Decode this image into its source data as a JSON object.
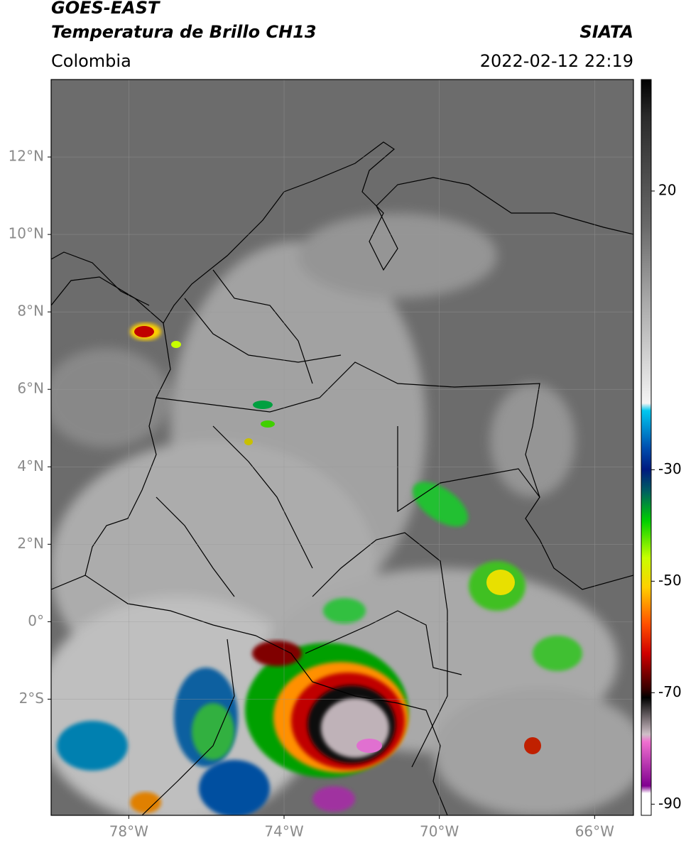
{
  "header": {
    "title": "GOES-EAST",
    "subtitle": "Temperatura de Brillo CH13",
    "source": "SIATA",
    "region": "Colombia",
    "timestamp": "2022-02-12 22:19"
  },
  "map": {
    "lat_range": [
      -5,
      14
    ],
    "lon_range": [
      -80,
      -65
    ],
    "grid": true,
    "lat_ticks": [
      {
        "value": 12,
        "label": "12°N"
      },
      {
        "value": 10,
        "label": "10°N"
      },
      {
        "value": 8,
        "label": "8°N"
      },
      {
        "value": 6,
        "label": "6°N"
      },
      {
        "value": 4,
        "label": "4°N"
      },
      {
        "value": 2,
        "label": "2°N"
      },
      {
        "value": 0,
        "label": "0°"
      },
      {
        "value": -2,
        "label": "2°S"
      }
    ],
    "lon_ticks": [
      {
        "value": -78,
        "label": "78°W"
      },
      {
        "value": -74,
        "label": "74°W"
      },
      {
        "value": -70,
        "label": "70°W"
      },
      {
        "value": -66,
        "label": "66°W"
      }
    ]
  },
  "colorbar": {
    "range": [
      -92,
      40
    ],
    "ticks": [
      20,
      -30,
      -50,
      -70,
      -90
    ]
  }
}
